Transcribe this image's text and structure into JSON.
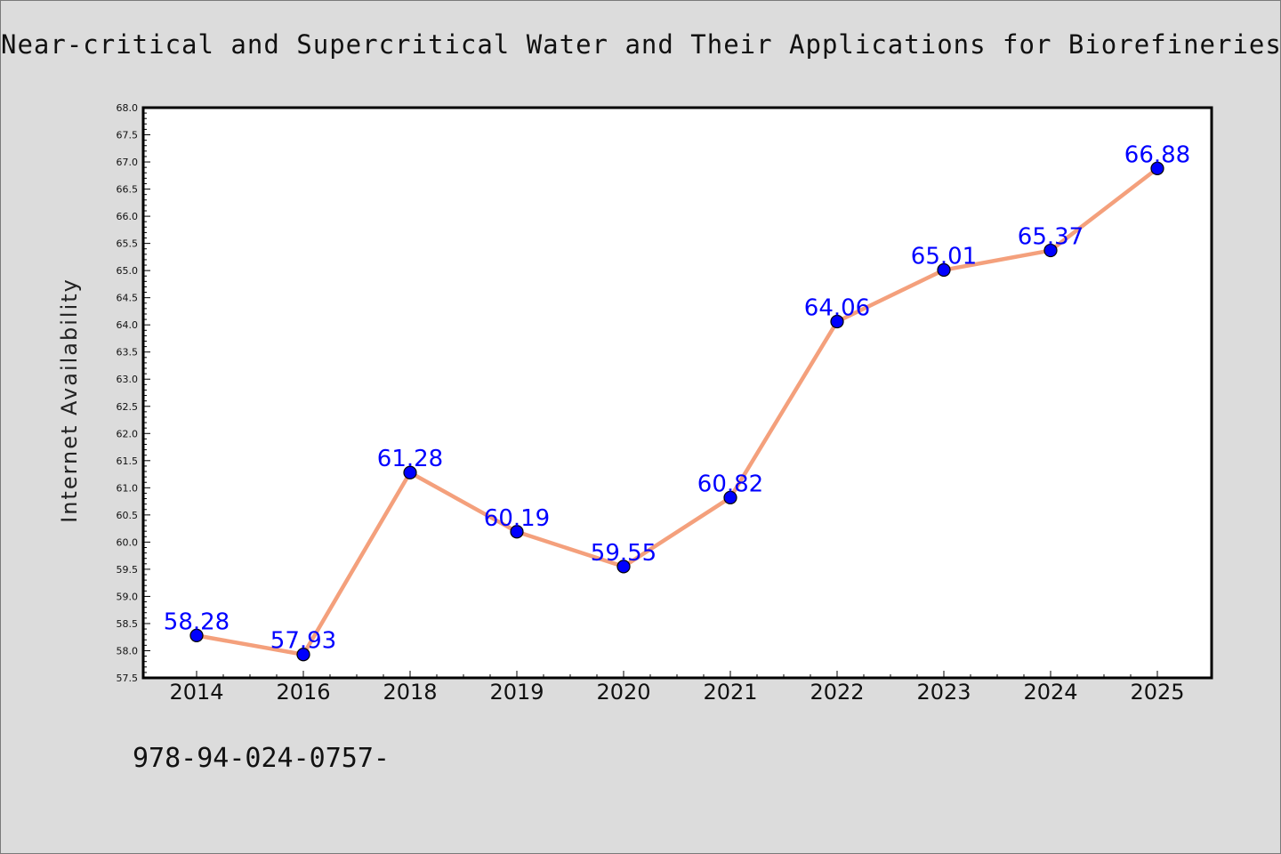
{
  "chart_data": {
    "type": "line",
    "title": "Near-critical and Supercritical Water and Their Applications for Biorefineries",
    "xlabel": "",
    "ylabel": "Internet Availability",
    "categories": [
      "2014",
      "2016",
      "2018",
      "2019",
      "2020",
      "2021",
      "2022",
      "2023",
      "2024",
      "2025"
    ],
    "series": [
      {
        "values": [
          58.28,
          57.93,
          61.28,
          60.19,
          59.55,
          60.82,
          64.06,
          65.01,
          65.37,
          66.88
        ],
        "data_labels": [
          "58.28",
          "57.93",
          "61.28",
          "60.19",
          "59.55",
          "60.82",
          "64.06",
          "65.01",
          "65.37",
          "66.88"
        ]
      }
    ],
    "ylim": [
      57.5,
      68.0
    ],
    "yticks": [
      "57.5",
      "58.0",
      "58.5",
      "59.0",
      "59.5",
      "60.0",
      "60.5",
      "61.0",
      "61.5",
      "62.0",
      "62.5",
      "63.0",
      "63.5",
      "64.0",
      "64.5",
      "65.0",
      "65.5",
      "66.0",
      "66.5",
      "67.0",
      "67.5",
      "68.0"
    ],
    "grid": false,
    "legend": "none",
    "colors": {
      "line": "#f4a07c",
      "marker": "#0000ff",
      "data_label": "#0000ff",
      "plot_background": "#ffffff",
      "figure_background": "#dcdcdc"
    }
  },
  "footnote": "978-94-024-0757-"
}
